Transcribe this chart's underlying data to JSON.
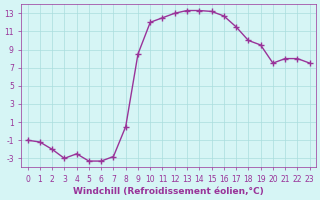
{
  "x": [
    0,
    1,
    2,
    3,
    4,
    5,
    6,
    7,
    8,
    9,
    10,
    11,
    12,
    13,
    14,
    15,
    16,
    17,
    18,
    19,
    20,
    21,
    22,
    23
  ],
  "y": [
    -1,
    -1.2,
    -2,
    -3,
    -2.5,
    -3.3,
    -3.3,
    -2.8,
    0.5,
    8.5,
    12.0,
    12.5,
    13.0,
    13.3,
    13.3,
    13.2,
    12.7,
    11.5,
    10.0,
    9.5,
    7.5,
    8.0,
    8.0,
    7.5
  ],
  "line_color": "#993399",
  "marker": "+",
  "bg_color": "#d6f5f5",
  "grid_color": "#aadddd",
  "xlabel": "Windchill (Refroidissement éolien,°C)",
  "xlabel_color": "#993399",
  "xlim": [
    -0.5,
    23.5
  ],
  "ylim": [
    -4,
    14
  ],
  "yticks": [
    -3,
    -1,
    1,
    3,
    5,
    7,
    9,
    11,
    13
  ],
  "xticks": [
    0,
    1,
    2,
    3,
    4,
    5,
    6,
    7,
    8,
    9,
    10,
    11,
    12,
    13,
    14,
    15,
    16,
    17,
    18,
    19,
    20,
    21,
    22,
    23
  ],
  "tick_color": "#993399",
  "tick_label_fontsize": 5.5,
  "xlabel_fontsize": 6.5
}
